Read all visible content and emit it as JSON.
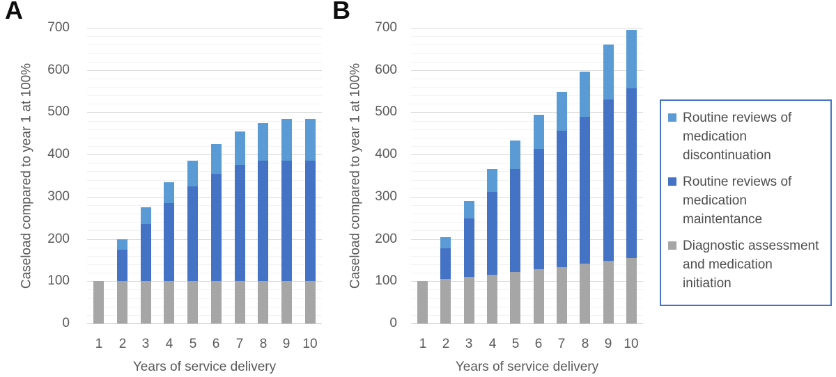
{
  "figure": {
    "panels": [
      {
        "letter": "A"
      },
      {
        "letter": "B"
      }
    ]
  },
  "legend": {
    "border_color": "#4472C4",
    "items": [
      {
        "label": "Routine reviews of medication discontinuation",
        "color": "#5B9BD5"
      },
      {
        "label": "Routine reviews of medication maintentance",
        "color": "#4472C4"
      },
      {
        "label": "Diagnostic assessment and medication initiation",
        "color": "#A6A6A6"
      }
    ]
  },
  "chart_data": [
    {
      "panel": "A",
      "type": "bar",
      "stacked": true,
      "categories": [
        "1",
        "2",
        "3",
        "4",
        "5",
        "6",
        "7",
        "8",
        "9",
        "10"
      ],
      "series": [
        {
          "name": "Diagnostic assessment and medication initiation",
          "color": "#A6A6A6",
          "values": [
            100,
            100,
            100,
            100,
            100,
            100,
            100,
            100,
            100,
            100
          ]
        },
        {
          "name": "Routine reviews of medication maintentance",
          "color": "#4472C4",
          "values": [
            0,
            75,
            135,
            185,
            225,
            255,
            275,
            285,
            285,
            285
          ]
        },
        {
          "name": "Routine reviews of medication discontinuation",
          "color": "#5B9BD5",
          "values": [
            0,
            25,
            40,
            50,
            60,
            70,
            80,
            90,
            100,
            100
          ]
        }
      ],
      "stack_totals": [
        100,
        200,
        275,
        335,
        385,
        425,
        455,
        475,
        485,
        485
      ],
      "xlabel": "Years of service delivery",
      "ylabel": "Caseload compared to year 1 at 100%",
      "ylim": [
        0,
        700
      ],
      "ytick_step": 100,
      "yminor_step": 20,
      "grid": true,
      "legend_position": "right-of-figure"
    },
    {
      "panel": "B",
      "type": "bar",
      "stacked": true,
      "categories": [
        "1",
        "2",
        "3",
        "4",
        "5",
        "6",
        "7",
        "8",
        "9",
        "10"
      ],
      "series": [
        {
          "name": "Diagnostic assessment and medication initiation",
          "color": "#A6A6A6",
          "values": [
            100,
            105,
            110,
            116,
            122,
            128,
            134,
            141,
            148,
            155
          ]
        },
        {
          "name": "Routine reviews of medication maintentance",
          "color": "#4472C4",
          "values": [
            0,
            73,
            138,
            195,
            244,
            286,
            322,
            348,
            383,
            402
          ]
        },
        {
          "name": "Routine reviews of medication discontinuation",
          "color": "#5B9BD5",
          "values": [
            0,
            26,
            42,
            54,
            67,
            80,
            93,
            108,
            129,
            138
          ]
        }
      ],
      "stack_totals": [
        100,
        204,
        290,
        365,
        433,
        494,
        549,
        597,
        660,
        695
      ],
      "xlabel": "Years of service delivery",
      "ylabel": "Caseload compared to year 1 at 100%",
      "ylim": [
        0,
        700
      ],
      "ytick_step": 100,
      "yminor_step": 20,
      "grid": true,
      "legend_position": "right-of-figure"
    }
  ]
}
